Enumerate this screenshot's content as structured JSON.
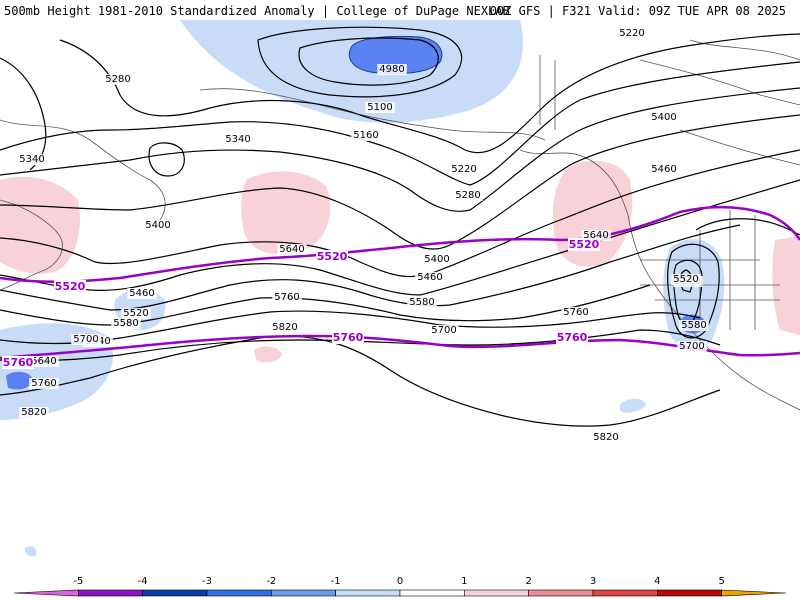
{
  "header": {
    "title": "500mb Height 1981-2010 Standardized Anomaly | College of DuPage NEXLAB",
    "valid": "00Z GFS | F321 Valid: 09Z TUE APR 08 2025"
  },
  "colors": {
    "contour": "#000000",
    "reference_contour": "#9a00c8",
    "coastline": "#555555",
    "neg_1": "#c8dcf8",
    "neg_2": "#5a82f0",
    "pos_1": "#f8d2d8"
  },
  "height_labels": [
    "5280",
    "5340",
    "5100",
    "5160",
    "4980",
    "5220",
    "5340",
    "5400",
    "5460",
    "5400",
    "5280",
    "5220",
    "5460",
    "5400",
    "5640",
    "5520",
    "5460",
    "5520",
    "5580",
    "5640",
    "5700",
    "5760",
    "5820",
    "5760",
    "5820",
    "5580",
    "5640",
    "5700",
    "5820",
    "5640",
    "5760",
    "5520",
    "5580",
    "5700"
  ],
  "reference_labels": [
    "5520",
    "5520",
    "5520",
    "5760",
    "5760",
    "5760"
  ],
  "colorbar": {
    "ticks": [
      "-5",
      "-4",
      "-3",
      "-2",
      "-1",
      "0",
      "1",
      "2",
      "3",
      "4",
      "5"
    ],
    "colors": [
      "#e060e0",
      "#8c10c8",
      "#0a3ca8",
      "#2d6ee0",
      "#6c9cf0",
      "#c8dcf8",
      "#ffffff",
      "#f8d2d8",
      "#f08c96",
      "#e04646",
      "#b40a0a",
      "#f0a000"
    ]
  }
}
